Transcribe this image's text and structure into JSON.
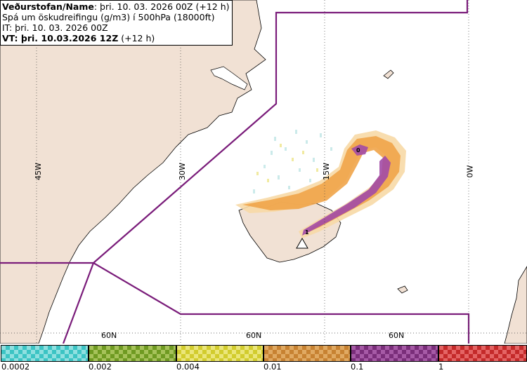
{
  "title": {
    "line1_label": "Veðurstofan/Name",
    "line1_value": ": þri. 10. 03. 2026 00Z (+12 h)",
    "line2": "Spá um öskudreifingu (g/m3) í 500hPa (18000ft)",
    "line3": "IT: þri. 10. 03. 2026 00Z",
    "line4_label": "VT: þri. 10.03.2026 12Z",
    "line4_value": " (+12 h)"
  },
  "map": {
    "longitude_labels": [
      "45W",
      "30W",
      "15W",
      "0W"
    ],
    "latitude_labels": [
      "60N",
      "60N",
      "60N"
    ],
    "markers": [
      "0",
      "1"
    ],
    "colors": {
      "land": "#f1e1d4",
      "boundary": "#7a1c7a",
      "ash_light": "#f5c88a",
      "ash_orange": "#f0a449",
      "ash_purple": "#a24aa6"
    }
  },
  "legend": {
    "bands": [
      {
        "color": "#3cc4c4",
        "alt": "#8fe0e0"
      },
      {
        "color": "#6f9a22",
        "alt": "#a6c25a"
      },
      {
        "color": "#d2cc2e",
        "alt": "#ebe67a"
      },
      {
        "color": "#c78232",
        "alt": "#e0a962"
      },
      {
        "color": "#7a2e7a",
        "alt": "#a65aa6"
      },
      {
        "color": "#c42a2a",
        "alt": "#e46464"
      }
    ],
    "ticks": [
      "0.0002",
      "0.002",
      "0.004",
      "0.01",
      "0.1",
      "1"
    ]
  }
}
